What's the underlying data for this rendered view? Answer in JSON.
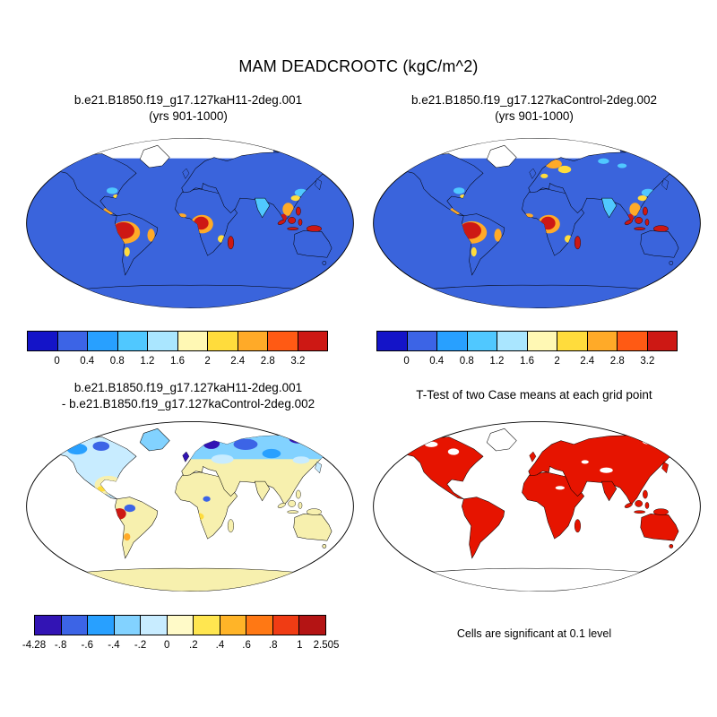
{
  "figure": {
    "title": "MAM DEADCROOTC (kgC/m^2)",
    "panels": {
      "top_left": {
        "title_line1": "b.e21.B1850.f19_g17.127kaH11-2deg.001",
        "title_line2": "(yrs 901-1000)"
      },
      "top_right": {
        "title_line1": "b.e21.B1850.f19_g17.127kaControl-2deg.002",
        "title_line2": "(yrs 901-1000)"
      },
      "bottom_left": {
        "title_line1": "b.e21.B1850.f19_g17.127kaH11-2deg.001",
        "title_line2": "- b.e21.B1850.f19_g17.127kaControl-2deg.002"
      },
      "bottom_right": {
        "title": "T-Test of two Case means at each grid point",
        "caption": "Cells are significant at 0.1 level"
      }
    }
  },
  "colorbars": {
    "absolute": {
      "colors": [
        "#1414c8",
        "#3c64e6",
        "#28a0ff",
        "#50c8ff",
        "#aae6ff",
        "#fff8b4",
        "#ffdc3c",
        "#ffaa28",
        "#ff5a14",
        "#cd1814"
      ],
      "boundary_labels": [
        "0",
        "0.4",
        "0.8",
        "1.2",
        "1.6",
        "2",
        "2.4",
        "2.8",
        "3.2"
      ]
    },
    "difference": {
      "colors": [
        "#3214b4",
        "#3c64e6",
        "#28a0ff",
        "#82d2ff",
        "#c8ecff",
        "#fffac8",
        "#ffe650",
        "#ffb428",
        "#ff7814",
        "#f03c14",
        "#b41414"
      ],
      "boundary_labels": [
        "-.8",
        "-.6",
        "-.4",
        "-.2",
        "0",
        ".2",
        ".4",
        ".6",
        ".8",
        "1"
      ],
      "left_end_label": "-4.28",
      "right_end_label": "2.505"
    }
  },
  "colors": {
    "ocean": "#3a64dc",
    "red": "#cd1814",
    "orange": "#ffaa28",
    "yellow": "#ffdc3c",
    "cyan": "#50c8ff",
    "pyellow": "#f7f0ae",
    "dindigo": "#3214b4",
    "dblue": "#3c64e6",
    "dcyan": "#28a0ff",
    "dlightblue": "#82d2ff",
    "dpaleblue": "#c8ecff",
    "sigred": "#e61400"
  },
  "chart_data": [
    {
      "type": "heatmap",
      "variant": "global_map",
      "panel": "top_left",
      "title": "b.e21.B1850.f19_g17.127kaH11-2deg.001",
      "subtitle": "(yrs 901-1000)",
      "variable": "DEADCROOTC",
      "season": "MAM",
      "units": "kgC/m^2",
      "projection": "robinson",
      "legend_position": "below",
      "color_scale": {
        "boundaries": [
          0,
          0.4,
          0.8,
          1.2,
          1.6,
          2,
          2.4,
          2.8,
          3.2
        ],
        "colors": [
          "#1414c8",
          "#3c64e6",
          "#28a0ff",
          "#50c8ff",
          "#aae6ff",
          "#fff8b4",
          "#ffdc3c",
          "#ffaa28",
          "#ff5a14",
          "#cd1814"
        ]
      },
      "pattern_summary": "Low values (blue) over most land and ocean; high values (orange/red) over Amazonia, central Africa, Madagascar, Indonesia/Maritime Continent, northern Australia and tropical coasts; white over Greenland/high Arctic."
    },
    {
      "type": "heatmap",
      "variant": "global_map",
      "panel": "top_right",
      "title": "b.e21.B1850.f19_g17.127kaControl-2deg.002",
      "subtitle": "(yrs 901-1000)",
      "variable": "DEADCROOTC",
      "season": "MAM",
      "units": "kgC/m^2",
      "projection": "robinson",
      "legend_position": "below",
      "color_scale": {
        "boundaries": [
          0,
          0.4,
          0.8,
          1.2,
          1.6,
          2,
          2.4,
          2.8,
          3.2
        ],
        "colors": [
          "#1414c8",
          "#3c64e6",
          "#28a0ff",
          "#50c8ff",
          "#aae6ff",
          "#fff8b4",
          "#ffdc3c",
          "#ffaa28",
          "#ff5a14",
          "#cd1814"
        ]
      },
      "pattern_summary": "Similar to H11 case; additional yellow/orange values over northern Europe/Scandinavia and cyan patches across Siberia."
    },
    {
      "type": "heatmap",
      "variant": "global_map_difference",
      "panel": "bottom_left",
      "title": "b.e21.B1850.f19_g17.127kaH11-2deg.001",
      "subtitle": "- b.e21.B1850.f19_g17.127kaControl-2deg.002",
      "units": "kgC/m^2",
      "projection": "robinson",
      "color_scale": {
        "min": -4.28,
        "max": 2.505,
        "boundaries": [
          -0.8,
          -0.6,
          -0.4,
          -0.2,
          0,
          0.2,
          0.4,
          0.6,
          0.8,
          1
        ],
        "colors": [
          "#3214b4",
          "#3c64e6",
          "#28a0ff",
          "#82d2ff",
          "#c8ecff",
          "#fffac8",
          "#ffe650",
          "#ffb428",
          "#ff7814",
          "#f03c14",
          "#b41414"
        ]
      },
      "pattern_summary": "Negative differences (blues/dark purple) across northern Eurasia, Scandinavia and high-latitude North America; near-zero (pale yellow) over most tropics, subtropics and Antarctica; scattered positive (orange/red) patches over Amazonia and parts of Africa."
    },
    {
      "type": "map",
      "variant": "significance_mask",
      "panel": "bottom_right",
      "title": "T-Test of two Case means at each grid point",
      "caption": "Cells are significant at 0.1 level",
      "significant_color": "#e61400",
      "pattern_summary": "Nearly all vegetated land significant (red); Greenland and Antarctica unshaded."
    }
  ]
}
